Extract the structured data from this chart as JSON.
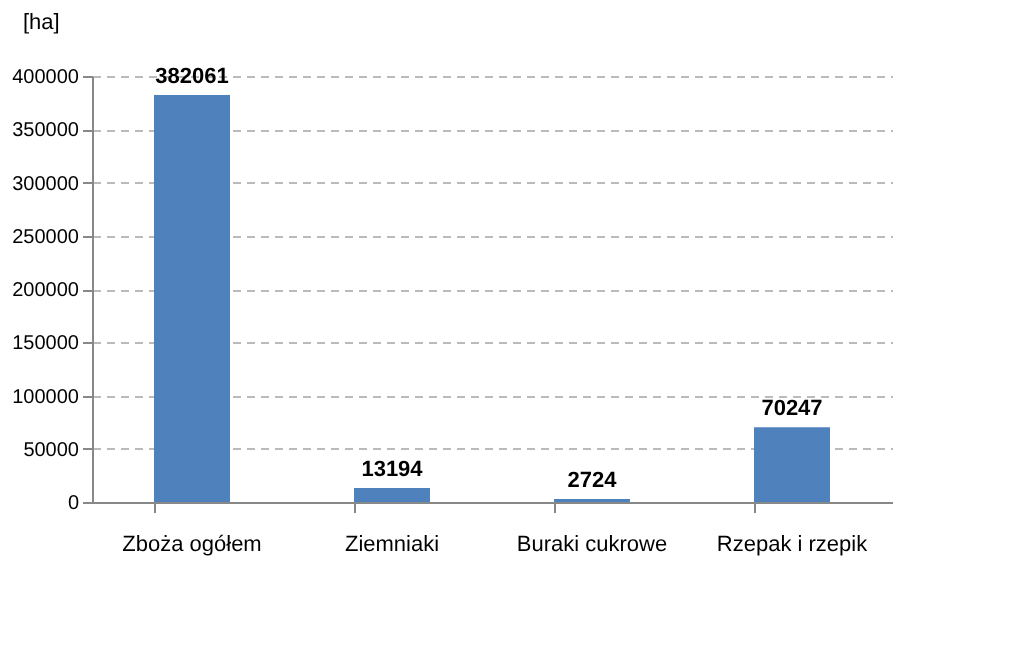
{
  "chart_data": {
    "type": "bar",
    "ylabel": "[ha]",
    "categories": [
      "Zboża ogółem",
      "Ziemniaki",
      "Buraki cukrowe",
      "Rzepak i rzepik"
    ],
    "values": [
      382061,
      13194,
      2724,
      70247
    ],
    "color": "#4f81bd",
    "ylim": [
      0,
      400000
    ],
    "yticks": [
      0,
      50000,
      100000,
      150000,
      200000,
      250000,
      300000,
      350000,
      400000
    ],
    "grid": "y",
    "data_labels": true
  }
}
